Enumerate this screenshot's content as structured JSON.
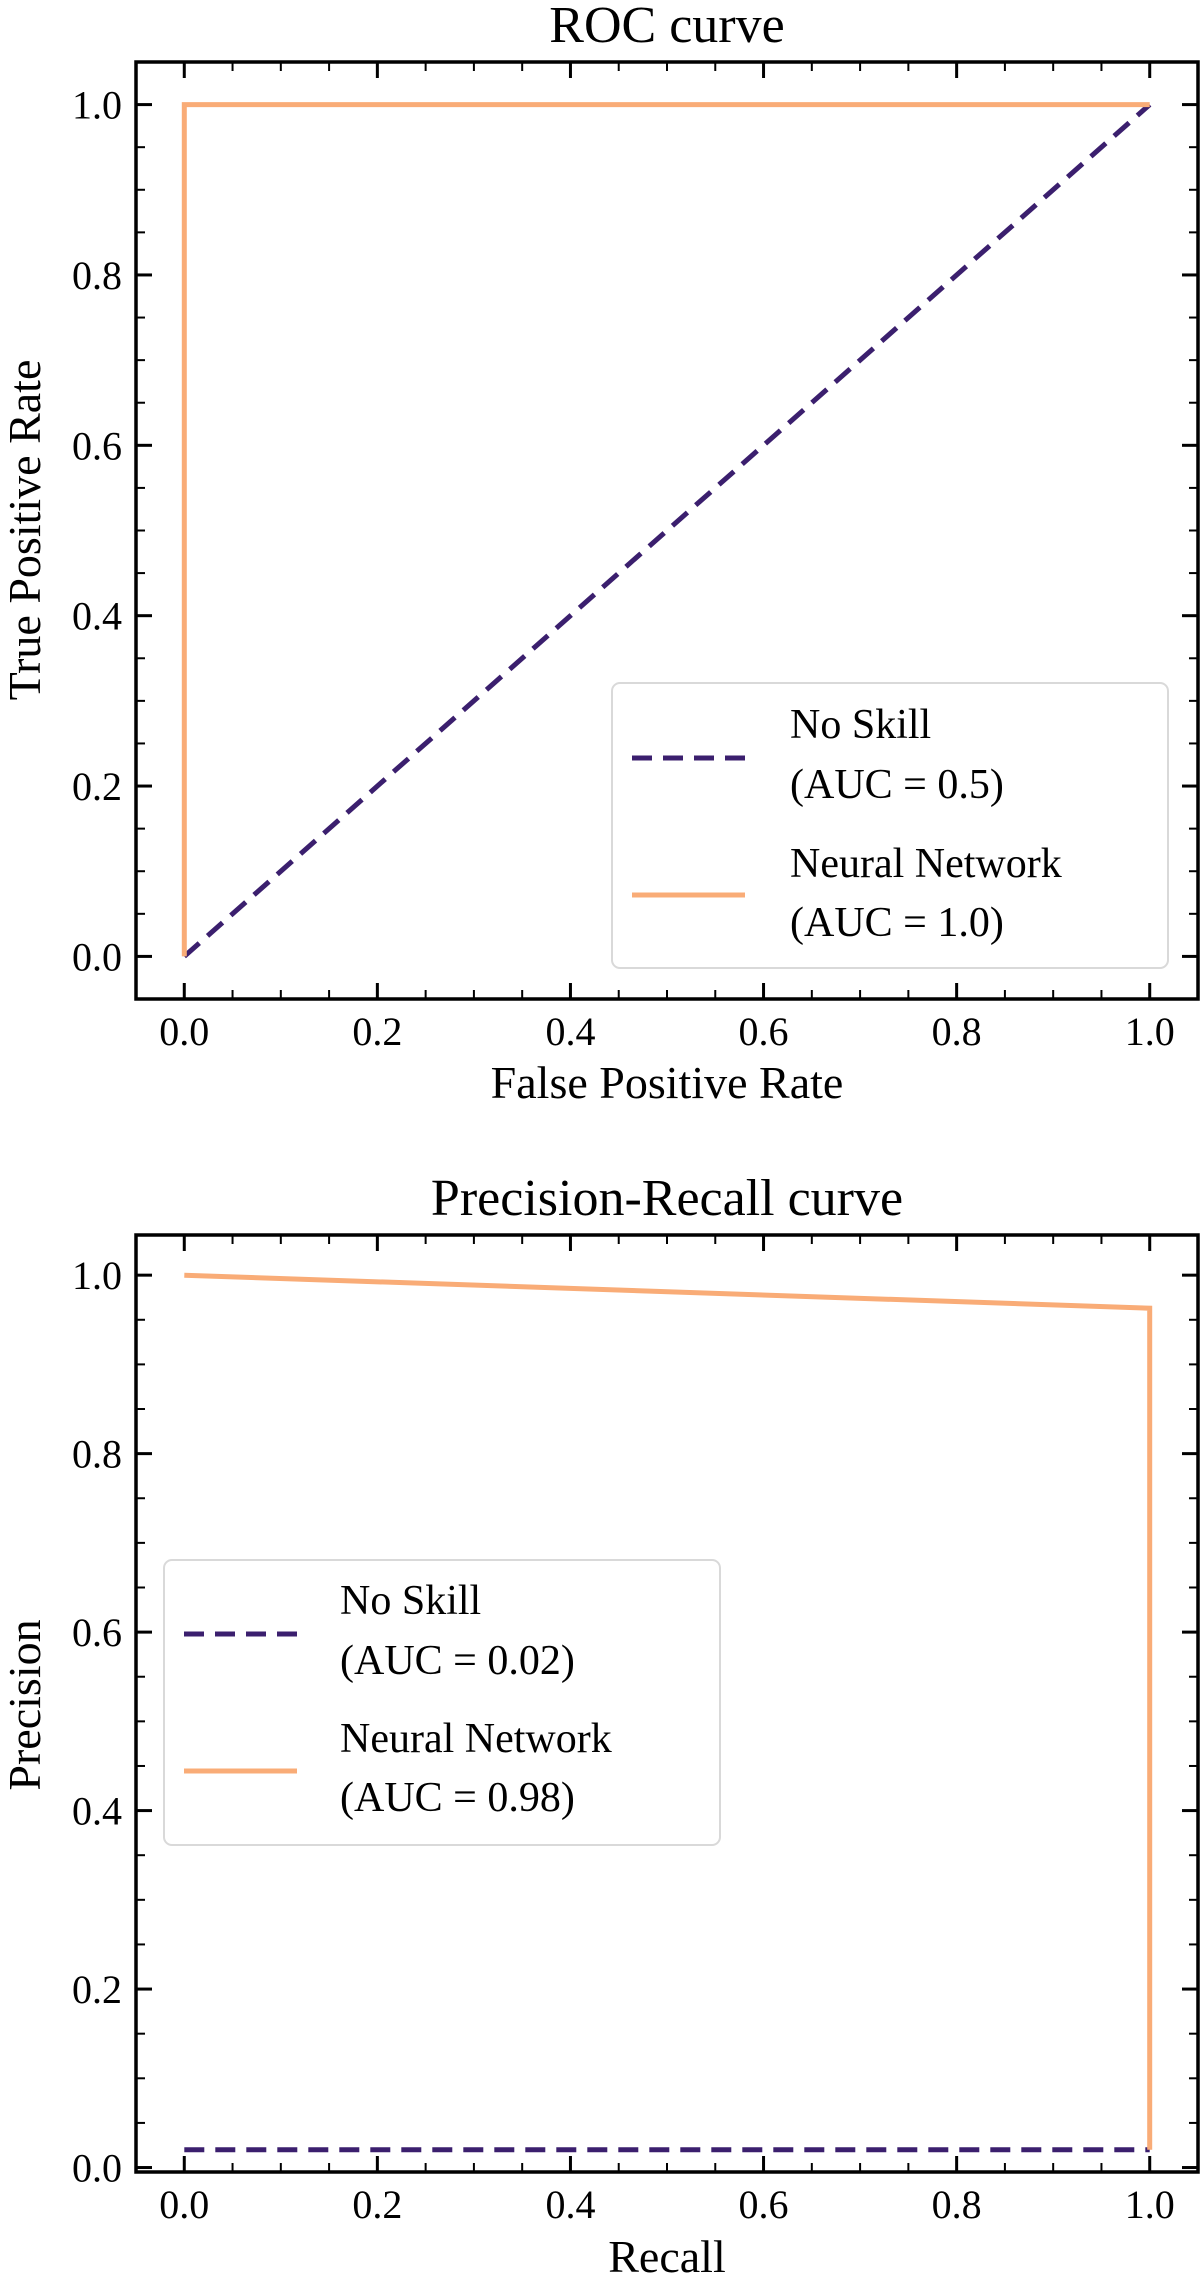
{
  "colors": {
    "no_skill": "#3b1f6e",
    "neural_network": "#f9ac77",
    "axis": "#000000",
    "legend_border": "#d9d9d9"
  },
  "chart_data": [
    {
      "type": "line",
      "title": "ROC curve",
      "xlabel": "False Positive Rate",
      "ylabel": "True Positive Rate",
      "xlim": [
        -0.05,
        1.05
      ],
      "ylim": [
        -0.05,
        1.05
      ],
      "xticks": [
        0.0,
        0.2,
        0.4,
        0.6,
        0.8,
        1.0
      ],
      "yticks": [
        0.0,
        0.2,
        0.4,
        0.6,
        0.8,
        1.0
      ],
      "xtick_labels": [
        "0.0",
        "0.2",
        "0.4",
        "0.6",
        "0.8",
        "1.0"
      ],
      "ytick_labels": [
        "0.0",
        "0.2",
        "0.4",
        "0.6",
        "0.8",
        "1.0"
      ],
      "legend_position": "lower-right",
      "series": [
        {
          "name": "No Skill",
          "auc_label": "(AUC = 0.5)",
          "style": "dashed",
          "color_key": "no_skill",
          "x": [
            0.0,
            1.0
          ],
          "y": [
            0.0,
            1.0
          ]
        },
        {
          "name": "Neural Network",
          "auc_label": "(AUC = 1.0)",
          "style": "solid",
          "color_key": "neural_network",
          "x": [
            0.0,
            0.0,
            1.0
          ],
          "y": [
            0.0,
            1.0,
            1.0
          ]
        }
      ]
    },
    {
      "type": "line",
      "title": "Precision-Recall curve",
      "xlabel": "Recall",
      "ylabel": "Precision",
      "xlim": [
        -0.05,
        1.05
      ],
      "ylim": [
        -0.005,
        1.045
      ],
      "xticks": [
        0.0,
        0.2,
        0.4,
        0.6,
        0.8,
        1.0
      ],
      "yticks": [
        0.0,
        0.2,
        0.4,
        0.6,
        0.8,
        1.0
      ],
      "xtick_labels": [
        "0.0",
        "0.2",
        "0.4",
        "0.6",
        "0.8",
        "1.0"
      ],
      "ytick_labels": [
        "0.0",
        "0.2",
        "0.4",
        "0.6",
        "0.8",
        "1.0"
      ],
      "legend_position": "center-left",
      "series": [
        {
          "name": "No Skill",
          "auc_label": "(AUC = 0.02)",
          "style": "dashed",
          "color_key": "no_skill",
          "x": [
            0.0,
            1.0
          ],
          "y": [
            0.02,
            0.02
          ]
        },
        {
          "name": "Neural Network",
          "auc_label": "(AUC = 0.98)",
          "style": "solid",
          "color_key": "neural_network",
          "x": [
            0.0,
            1.0,
            1.0
          ],
          "y": [
            1.0,
            0.963,
            0.02
          ]
        }
      ]
    }
  ]
}
